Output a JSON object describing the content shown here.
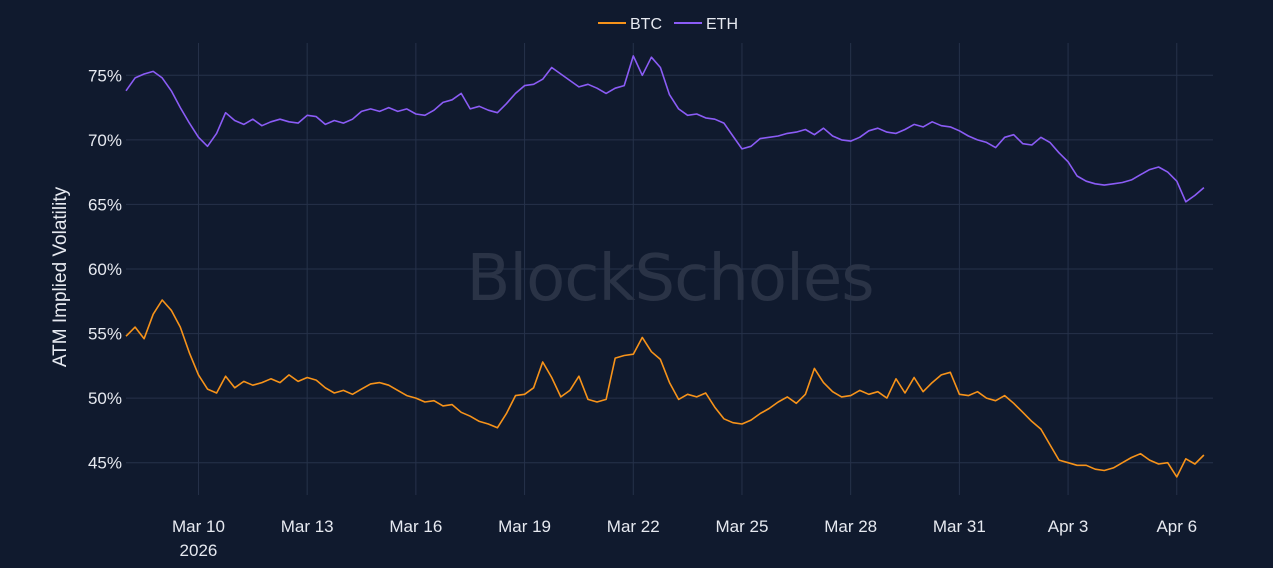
{
  "chart_data": {
    "type": "line",
    "ylabel": "ATM Implied Volatility",
    "watermark": "BlockScholes",
    "background_color": "#101a2e",
    "grid": true,
    "legend_placement": "top-center",
    "ylim": [
      42.5,
      77.5
    ],
    "y_ticks": [
      {
        "value": 45,
        "label": "45%"
      },
      {
        "value": 50,
        "label": "50%"
      },
      {
        "value": 55,
        "label": "55%"
      },
      {
        "value": 60,
        "label": "60%"
      },
      {
        "value": 65,
        "label": "65%"
      },
      {
        "value": 70,
        "label": "70%"
      },
      {
        "value": 75,
        "label": "75%"
      }
    ],
    "x_ticks": [
      {
        "date": "2026-03-10",
        "label": "Mar 10",
        "sublabel": "2026"
      },
      {
        "date": "2026-03-13",
        "label": "Mar 13",
        "sublabel": ""
      },
      {
        "date": "2026-03-16",
        "label": "Mar 16",
        "sublabel": ""
      },
      {
        "date": "2026-03-19",
        "label": "Mar 19",
        "sublabel": ""
      },
      {
        "date": "2026-03-22",
        "label": "Mar 22",
        "sublabel": ""
      },
      {
        "date": "2026-03-25",
        "label": "Mar 25",
        "sublabel": ""
      },
      {
        "date": "2026-03-28",
        "label": "Mar 28",
        "sublabel": ""
      },
      {
        "date": "2026-03-31",
        "label": "Mar 31",
        "sublabel": ""
      },
      {
        "date": "2026-04-03",
        "label": "Apr 3",
        "sublabel": ""
      },
      {
        "date": "2026-04-06",
        "label": "Apr 6",
        "sublabel": ""
      }
    ],
    "xlim": [
      "2026-03-08 00:00",
      "2026-04-07 00:00"
    ],
    "series": [
      {
        "name": "BTC",
        "color": "#f7931a",
        "points": [
          [
            "2026-03-08 00:00",
            54.8
          ],
          [
            "2026-03-08 06:00",
            55.5
          ],
          [
            "2026-03-08 12:00",
            54.6
          ],
          [
            "2026-03-08 18:00",
            56.5
          ],
          [
            "2026-03-09 00:00",
            57.6
          ],
          [
            "2026-03-09 06:00",
            56.8
          ],
          [
            "2026-03-09 12:00",
            55.5
          ],
          [
            "2026-03-09 18:00",
            53.5
          ],
          [
            "2026-03-10 00:00",
            51.8
          ],
          [
            "2026-03-10 06:00",
            50.7
          ],
          [
            "2026-03-10 12:00",
            50.4
          ],
          [
            "2026-03-10 18:00",
            51.7
          ],
          [
            "2026-03-11 00:00",
            50.8
          ],
          [
            "2026-03-11 06:00",
            51.3
          ],
          [
            "2026-03-11 12:00",
            51.0
          ],
          [
            "2026-03-11 18:00",
            51.2
          ],
          [
            "2026-03-12 00:00",
            51.5
          ],
          [
            "2026-03-12 06:00",
            51.2
          ],
          [
            "2026-03-12 12:00",
            51.8
          ],
          [
            "2026-03-12 18:00",
            51.3
          ],
          [
            "2026-03-13 00:00",
            51.6
          ],
          [
            "2026-03-13 06:00",
            51.4
          ],
          [
            "2026-03-13 12:00",
            50.8
          ],
          [
            "2026-03-13 18:00",
            50.4
          ],
          [
            "2026-03-14 00:00",
            50.6
          ],
          [
            "2026-03-14 06:00",
            50.3
          ],
          [
            "2026-03-14 12:00",
            50.7
          ],
          [
            "2026-03-14 18:00",
            51.1
          ],
          [
            "2026-03-15 00:00",
            51.2
          ],
          [
            "2026-03-15 06:00",
            51.0
          ],
          [
            "2026-03-15 12:00",
            50.6
          ],
          [
            "2026-03-15 18:00",
            50.2
          ],
          [
            "2026-03-16 00:00",
            50.0
          ],
          [
            "2026-03-16 06:00",
            49.7
          ],
          [
            "2026-03-16 12:00",
            49.8
          ],
          [
            "2026-03-16 18:00",
            49.4
          ],
          [
            "2026-03-17 00:00",
            49.5
          ],
          [
            "2026-03-17 06:00",
            48.9
          ],
          [
            "2026-03-17 12:00",
            48.6
          ],
          [
            "2026-03-17 18:00",
            48.2
          ],
          [
            "2026-03-18 00:00",
            48.0
          ],
          [
            "2026-03-18 06:00",
            47.7
          ],
          [
            "2026-03-18 12:00",
            48.8
          ],
          [
            "2026-03-18 18:00",
            50.2
          ],
          [
            "2026-03-19 00:00",
            50.3
          ],
          [
            "2026-03-19 06:00",
            50.8
          ],
          [
            "2026-03-19 12:00",
            52.8
          ],
          [
            "2026-03-19 18:00",
            51.6
          ],
          [
            "2026-03-20 00:00",
            50.1
          ],
          [
            "2026-03-20 06:00",
            50.6
          ],
          [
            "2026-03-20 12:00",
            51.7
          ],
          [
            "2026-03-20 18:00",
            49.9
          ],
          [
            "2026-03-21 00:00",
            49.7
          ],
          [
            "2026-03-21 06:00",
            49.9
          ],
          [
            "2026-03-21 12:00",
            53.1
          ],
          [
            "2026-03-21 18:00",
            53.3
          ],
          [
            "2026-03-22 00:00",
            53.4
          ],
          [
            "2026-03-22 06:00",
            54.7
          ],
          [
            "2026-03-22 12:00",
            53.6
          ],
          [
            "2026-03-22 18:00",
            53.0
          ],
          [
            "2026-03-23 00:00",
            51.2
          ],
          [
            "2026-03-23 06:00",
            49.9
          ],
          [
            "2026-03-23 12:00",
            50.3
          ],
          [
            "2026-03-23 18:00",
            50.1
          ],
          [
            "2026-03-24 00:00",
            50.4
          ],
          [
            "2026-03-24 06:00",
            49.3
          ],
          [
            "2026-03-24 12:00",
            48.4
          ],
          [
            "2026-03-24 18:00",
            48.1
          ],
          [
            "2026-03-25 00:00",
            48.0
          ],
          [
            "2026-03-25 06:00",
            48.3
          ],
          [
            "2026-03-25 12:00",
            48.8
          ],
          [
            "2026-03-25 18:00",
            49.2
          ],
          [
            "2026-03-26 00:00",
            49.7
          ],
          [
            "2026-03-26 06:00",
            50.1
          ],
          [
            "2026-03-26 12:00",
            49.6
          ],
          [
            "2026-03-26 18:00",
            50.3
          ],
          [
            "2026-03-27 00:00",
            52.3
          ],
          [
            "2026-03-27 06:00",
            51.2
          ],
          [
            "2026-03-27 12:00",
            50.5
          ],
          [
            "2026-03-27 18:00",
            50.1
          ],
          [
            "2026-03-28 00:00",
            50.2
          ],
          [
            "2026-03-28 06:00",
            50.6
          ],
          [
            "2026-03-28 12:00",
            50.3
          ],
          [
            "2026-03-28 18:00",
            50.5
          ],
          [
            "2026-03-29 00:00",
            50.0
          ],
          [
            "2026-03-29 06:00",
            51.5
          ],
          [
            "2026-03-29 12:00",
            50.4
          ],
          [
            "2026-03-29 18:00",
            51.6
          ],
          [
            "2026-03-30 00:00",
            50.5
          ],
          [
            "2026-03-30 06:00",
            51.2
          ],
          [
            "2026-03-30 12:00",
            51.8
          ],
          [
            "2026-03-30 18:00",
            52.0
          ],
          [
            "2026-03-31 00:00",
            50.3
          ],
          [
            "2026-03-31 06:00",
            50.2
          ],
          [
            "2026-03-31 12:00",
            50.5
          ],
          [
            "2026-03-31 18:00",
            50.0
          ],
          [
            "2026-04-01 00:00",
            49.8
          ],
          [
            "2026-04-01 06:00",
            50.2
          ],
          [
            "2026-04-01 12:00",
            49.6
          ],
          [
            "2026-04-01 18:00",
            48.9
          ],
          [
            "2026-04-02 00:00",
            48.2
          ],
          [
            "2026-04-02 06:00",
            47.6
          ],
          [
            "2026-04-02 12:00",
            46.4
          ],
          [
            "2026-04-02 18:00",
            45.2
          ],
          [
            "2026-04-03 00:00",
            45.0
          ],
          [
            "2026-04-03 06:00",
            44.8
          ],
          [
            "2026-04-03 12:00",
            44.8
          ],
          [
            "2026-04-03 18:00",
            44.5
          ],
          [
            "2026-04-04 00:00",
            44.4
          ],
          [
            "2026-04-04 06:00",
            44.6
          ],
          [
            "2026-04-04 12:00",
            45.0
          ],
          [
            "2026-04-04 18:00",
            45.4
          ],
          [
            "2026-04-05 00:00",
            45.7
          ],
          [
            "2026-04-05 06:00",
            45.2
          ],
          [
            "2026-04-05 12:00",
            44.9
          ],
          [
            "2026-04-05 18:00",
            45.0
          ],
          [
            "2026-04-06 00:00",
            43.9
          ],
          [
            "2026-04-06 06:00",
            45.3
          ],
          [
            "2026-04-06 12:00",
            44.9
          ],
          [
            "2026-04-06 18:00",
            45.6
          ]
        ]
      },
      {
        "name": "ETH",
        "color": "#8b5cf6",
        "points": [
          [
            "2026-03-08 00:00",
            73.8
          ],
          [
            "2026-03-08 06:00",
            74.8
          ],
          [
            "2026-03-08 12:00",
            75.1
          ],
          [
            "2026-03-08 18:00",
            75.3
          ],
          [
            "2026-03-09 00:00",
            74.8
          ],
          [
            "2026-03-09 06:00",
            73.8
          ],
          [
            "2026-03-09 12:00",
            72.5
          ],
          [
            "2026-03-09 18:00",
            71.3
          ],
          [
            "2026-03-10 00:00",
            70.2
          ],
          [
            "2026-03-10 06:00",
            69.5
          ],
          [
            "2026-03-10 12:00",
            70.5
          ],
          [
            "2026-03-10 18:00",
            72.1
          ],
          [
            "2026-03-11 00:00",
            71.5
          ],
          [
            "2026-03-11 06:00",
            71.2
          ],
          [
            "2026-03-11 12:00",
            71.6
          ],
          [
            "2026-03-11 18:00",
            71.1
          ],
          [
            "2026-03-12 00:00",
            71.4
          ],
          [
            "2026-03-12 06:00",
            71.6
          ],
          [
            "2026-03-12 12:00",
            71.4
          ],
          [
            "2026-03-12 18:00",
            71.3
          ],
          [
            "2026-03-13 00:00",
            71.9
          ],
          [
            "2026-03-13 06:00",
            71.8
          ],
          [
            "2026-03-13 12:00",
            71.2
          ],
          [
            "2026-03-13 18:00",
            71.5
          ],
          [
            "2026-03-14 00:00",
            71.3
          ],
          [
            "2026-03-14 06:00",
            71.6
          ],
          [
            "2026-03-14 12:00",
            72.2
          ],
          [
            "2026-03-14 18:00",
            72.4
          ],
          [
            "2026-03-15 00:00",
            72.2
          ],
          [
            "2026-03-15 06:00",
            72.5
          ],
          [
            "2026-03-15 12:00",
            72.2
          ],
          [
            "2026-03-15 18:00",
            72.4
          ],
          [
            "2026-03-16 00:00",
            72.0
          ],
          [
            "2026-03-16 06:00",
            71.9
          ],
          [
            "2026-03-16 12:00",
            72.3
          ],
          [
            "2026-03-16 18:00",
            72.9
          ],
          [
            "2026-03-17 00:00",
            73.1
          ],
          [
            "2026-03-17 06:00",
            73.6
          ],
          [
            "2026-03-17 12:00",
            72.4
          ],
          [
            "2026-03-17 18:00",
            72.6
          ],
          [
            "2026-03-18 00:00",
            72.3
          ],
          [
            "2026-03-18 06:00",
            72.1
          ],
          [
            "2026-03-18 12:00",
            72.8
          ],
          [
            "2026-03-18 18:00",
            73.6
          ],
          [
            "2026-03-19 00:00",
            74.2
          ],
          [
            "2026-03-19 06:00",
            74.3
          ],
          [
            "2026-03-19 12:00",
            74.7
          ],
          [
            "2026-03-19 18:00",
            75.6
          ],
          [
            "2026-03-20 00:00",
            75.1
          ],
          [
            "2026-03-20 06:00",
            74.6
          ],
          [
            "2026-03-20 12:00",
            74.1
          ],
          [
            "2026-03-20 18:00",
            74.3
          ],
          [
            "2026-03-21 00:00",
            74.0
          ],
          [
            "2026-03-21 06:00",
            73.6
          ],
          [
            "2026-03-21 12:00",
            74.0
          ],
          [
            "2026-03-21 18:00",
            74.2
          ],
          [
            "2026-03-22 00:00",
            76.5
          ],
          [
            "2026-03-22 06:00",
            75.0
          ],
          [
            "2026-03-22 12:00",
            76.4
          ],
          [
            "2026-03-22 18:00",
            75.6
          ],
          [
            "2026-03-23 00:00",
            73.5
          ],
          [
            "2026-03-23 06:00",
            72.4
          ],
          [
            "2026-03-23 12:00",
            71.9
          ],
          [
            "2026-03-23 18:00",
            72.0
          ],
          [
            "2026-03-24 00:00",
            71.7
          ],
          [
            "2026-03-24 06:00",
            71.6
          ],
          [
            "2026-03-24 12:00",
            71.3
          ],
          [
            "2026-03-24 18:00",
            70.3
          ],
          [
            "2026-03-25 00:00",
            69.3
          ],
          [
            "2026-03-25 06:00",
            69.5
          ],
          [
            "2026-03-25 12:00",
            70.1
          ],
          [
            "2026-03-25 18:00",
            70.2
          ],
          [
            "2026-03-26 00:00",
            70.3
          ],
          [
            "2026-03-26 06:00",
            70.5
          ],
          [
            "2026-03-26 12:00",
            70.6
          ],
          [
            "2026-03-26 18:00",
            70.8
          ],
          [
            "2026-03-27 00:00",
            70.4
          ],
          [
            "2026-03-27 06:00",
            70.9
          ],
          [
            "2026-03-27 12:00",
            70.3
          ],
          [
            "2026-03-27 18:00",
            70.0
          ],
          [
            "2026-03-28 00:00",
            69.9
          ],
          [
            "2026-03-28 06:00",
            70.2
          ],
          [
            "2026-03-28 12:00",
            70.7
          ],
          [
            "2026-03-28 18:00",
            70.9
          ],
          [
            "2026-03-29 00:00",
            70.6
          ],
          [
            "2026-03-29 06:00",
            70.5
          ],
          [
            "2026-03-29 12:00",
            70.8
          ],
          [
            "2026-03-29 18:00",
            71.2
          ],
          [
            "2026-03-30 00:00",
            71.0
          ],
          [
            "2026-03-30 06:00",
            71.4
          ],
          [
            "2026-03-30 12:00",
            71.1
          ],
          [
            "2026-03-30 18:00",
            71.0
          ],
          [
            "2026-03-31 00:00",
            70.7
          ],
          [
            "2026-03-31 06:00",
            70.3
          ],
          [
            "2026-03-31 12:00",
            70.0
          ],
          [
            "2026-03-31 18:00",
            69.8
          ],
          [
            "2026-04-01 00:00",
            69.4
          ],
          [
            "2026-04-01 06:00",
            70.2
          ],
          [
            "2026-04-01 12:00",
            70.4
          ],
          [
            "2026-04-01 18:00",
            69.7
          ],
          [
            "2026-04-02 00:00",
            69.6
          ],
          [
            "2026-04-02 06:00",
            70.2
          ],
          [
            "2026-04-02 12:00",
            69.8
          ],
          [
            "2026-04-02 18:00",
            69.0
          ],
          [
            "2026-04-03 00:00",
            68.3
          ],
          [
            "2026-04-03 06:00",
            67.2
          ],
          [
            "2026-04-03 12:00",
            66.8
          ],
          [
            "2026-04-03 18:00",
            66.6
          ],
          [
            "2026-04-04 00:00",
            66.5
          ],
          [
            "2026-04-04 06:00",
            66.6
          ],
          [
            "2026-04-04 12:00",
            66.7
          ],
          [
            "2026-04-04 18:00",
            66.9
          ],
          [
            "2026-04-05 00:00",
            67.3
          ],
          [
            "2026-04-05 06:00",
            67.7
          ],
          [
            "2026-04-05 12:00",
            67.9
          ],
          [
            "2026-04-05 18:00",
            67.5
          ],
          [
            "2026-04-06 00:00",
            66.8
          ],
          [
            "2026-04-06 06:00",
            65.2
          ],
          [
            "2026-04-06 12:00",
            65.7
          ],
          [
            "2026-04-06 18:00",
            66.3
          ]
        ]
      }
    ]
  }
}
